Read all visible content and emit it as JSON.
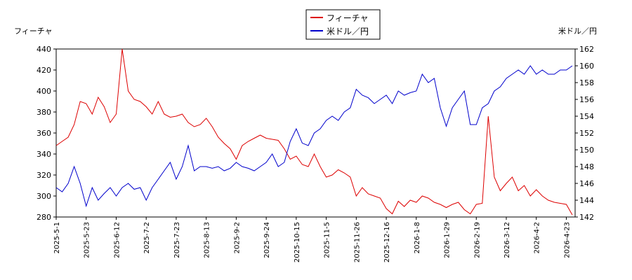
{
  "chart_data": {
    "type": "line",
    "y_label": "フィーチャ",
    "y2_label": "米ドル／円",
    "categories": [
      "2025-5-1",
      null,
      null,
      null,
      null,
      "2025-5-23",
      null,
      null,
      null,
      null,
      "2025-6-12",
      null,
      null,
      null,
      null,
      "2025-7-2",
      null,
      null,
      null,
      null,
      "2025-7-23",
      null,
      null,
      null,
      null,
      "2025-8-13",
      null,
      null,
      null,
      null,
      "2025-9-2",
      null,
      null,
      null,
      null,
      "2025-9-24",
      null,
      null,
      null,
      null,
      "2025-10-15",
      null,
      null,
      null,
      null,
      "2025-11-5",
      null,
      null,
      null,
      null,
      "2025-11-26",
      null,
      null,
      null,
      null,
      "2025-12-16",
      null,
      null,
      null,
      null,
      "2026-1-8",
      null,
      null,
      null,
      null,
      "2026-1-29",
      null,
      null,
      null,
      null,
      "2026-2-19",
      null,
      null,
      null,
      null,
      "2026-3-12",
      null,
      null,
      null,
      null,
      "2026-4-2",
      null,
      null,
      null,
      null,
      "2026-4-23",
      null
    ],
    "series": [
      {
        "name": "フィーチャ",
        "color": "#dd0000",
        "values": [
          348,
          352,
          356,
          368,
          390,
          388,
          378,
          394,
          385,
          370,
          378,
          440,
          400,
          392,
          390,
          385,
          378,
          390,
          378,
          375,
          376,
          378,
          370,
          366,
          368,
          374,
          366,
          356,
          350,
          345,
          335,
          348,
          352,
          355,
          358,
          355,
          354,
          353,
          345,
          335,
          338,
          330,
          328,
          340,
          328,
          318,
          320,
          325,
          322,
          318,
          300,
          308,
          302,
          300,
          298,
          288,
          283,
          295,
          290,
          296,
          294,
          300,
          298,
          294,
          292,
          289,
          292,
          294,
          287,
          283,
          292,
          293,
          376,
          318,
          305,
          312,
          318,
          305,
          310,
          300,
          306,
          300,
          296,
          294,
          293,
          292,
          282
        ]
      },
      {
        "name": "米ドル／円",
        "color": "#0000cc",
        "axis": "y2",
        "values": [
          145.5,
          145,
          146,
          148,
          146,
          143.3,
          145.5,
          144,
          144.8,
          145.5,
          144.5,
          145.5,
          146,
          145.3,
          145.5,
          144,
          145.5,
          146.5,
          147.5,
          148.5,
          146.5,
          148,
          150.5,
          147.5,
          148,
          148,
          147.8,
          148,
          147.5,
          147.8,
          148.5,
          148,
          147.8,
          147.5,
          148,
          148.5,
          149.5,
          148,
          148.5,
          151,
          152.5,
          150.8,
          150.5,
          152,
          152.5,
          153.5,
          154,
          153.5,
          154.5,
          155,
          157.2,
          156.5,
          156.2,
          155.5,
          156,
          156.5,
          155.5,
          157,
          156.5,
          156.8,
          157,
          159,
          158,
          158.5,
          155,
          152.8,
          155,
          156,
          157,
          153,
          153,
          155,
          155.5,
          157,
          157.5,
          158.5,
          159,
          159.5,
          159,
          160,
          159,
          159.5,
          159,
          159,
          159.5,
          159.5,
          160
        ]
      }
    ],
    "ylim": [
      280,
      440
    ],
    "yticks": [
      280,
      300,
      320,
      340,
      360,
      380,
      400,
      420,
      440
    ],
    "y2lim": [
      142,
      162
    ],
    "y2ticks": [
      142,
      144,
      146,
      148,
      150,
      152,
      154,
      156,
      158,
      160,
      162
    ]
  }
}
